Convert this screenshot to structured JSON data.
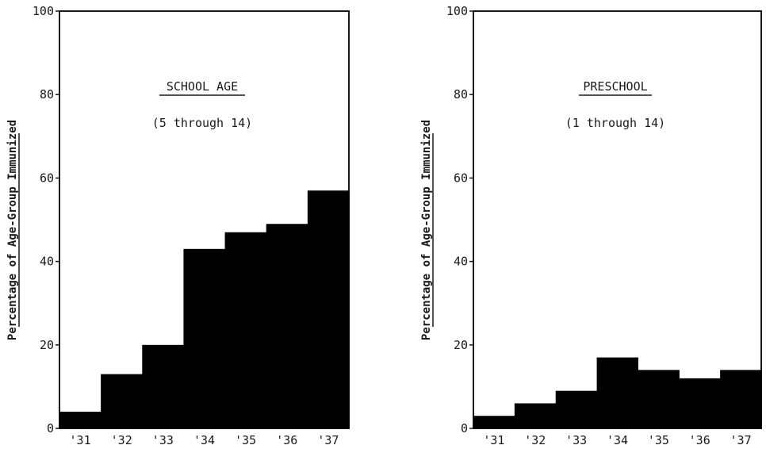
{
  "chart_data": [
    {
      "type": "bar",
      "title": "SCHOOL AGE",
      "subtitle": "(5 through 14)",
      "ylabel": "Percentage of Age-Group Immunized",
      "xlabel": "",
      "categories": [
        "'31",
        "'32",
        "'33",
        "'34",
        "'35",
        "'36",
        "'37"
      ],
      "values": [
        4,
        13,
        20,
        43,
        47,
        49,
        57
      ],
      "ylim": [
        0,
        100
      ],
      "yticks": [
        "0",
        "20",
        "40",
        "60",
        "80",
        "100"
      ],
      "grid": false,
      "legend": "none",
      "bar_color": "#000000"
    },
    {
      "type": "bar",
      "title": "PRESCHOOL",
      "subtitle": "(1 through 14)",
      "ylabel": "Percentage of Age-Group Immunized",
      "xlabel": "",
      "categories": [
        "'31",
        "'32",
        "'33",
        "'34",
        "'35",
        "'36",
        "'37"
      ],
      "values": [
        3,
        6,
        9,
        17,
        14,
        12,
        14
      ],
      "ylim": [
        0,
        100
      ],
      "yticks": [
        "0",
        "20",
        "40",
        "60",
        "80",
        "100"
      ],
      "grid": false,
      "legend": "none",
      "bar_color": "#000000"
    }
  ]
}
